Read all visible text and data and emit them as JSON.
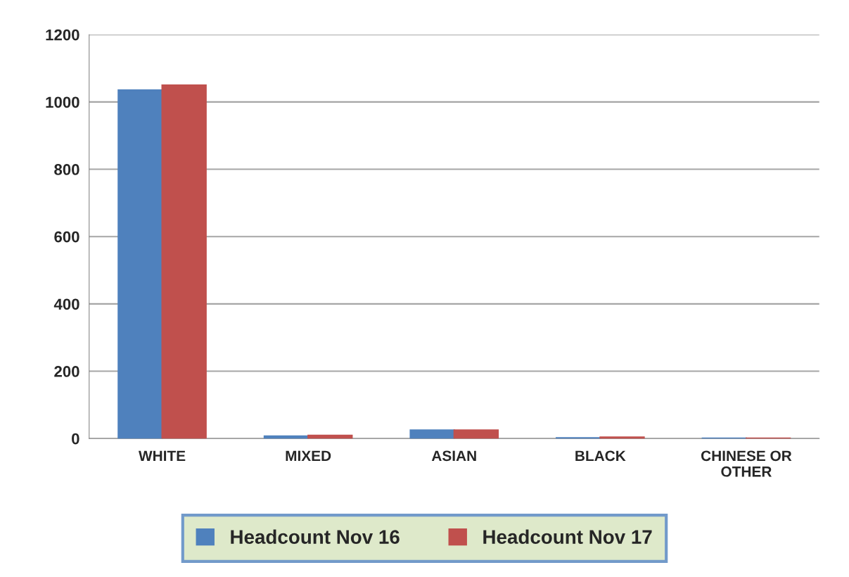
{
  "chart_data": {
    "type": "bar",
    "categories": [
      "WHITE",
      "MIXED",
      "ASIAN",
      "BLACK",
      "CHINESE OR\nOTHER"
    ],
    "series": [
      {
        "name": "Headcount Nov 16",
        "color": "#4f81bd",
        "values": [
          1035,
          7,
          25,
          2,
          1
        ]
      },
      {
        "name": "Headcount Nov 17",
        "color": "#c0504d",
        "values": [
          1050,
          9,
          25,
          4,
          1
        ]
      }
    ],
    "ylim": [
      0,
      1200
    ],
    "yticks": [
      0,
      200,
      400,
      600,
      800,
      1000,
      1200
    ],
    "grid": "y",
    "legend": "bottom"
  }
}
